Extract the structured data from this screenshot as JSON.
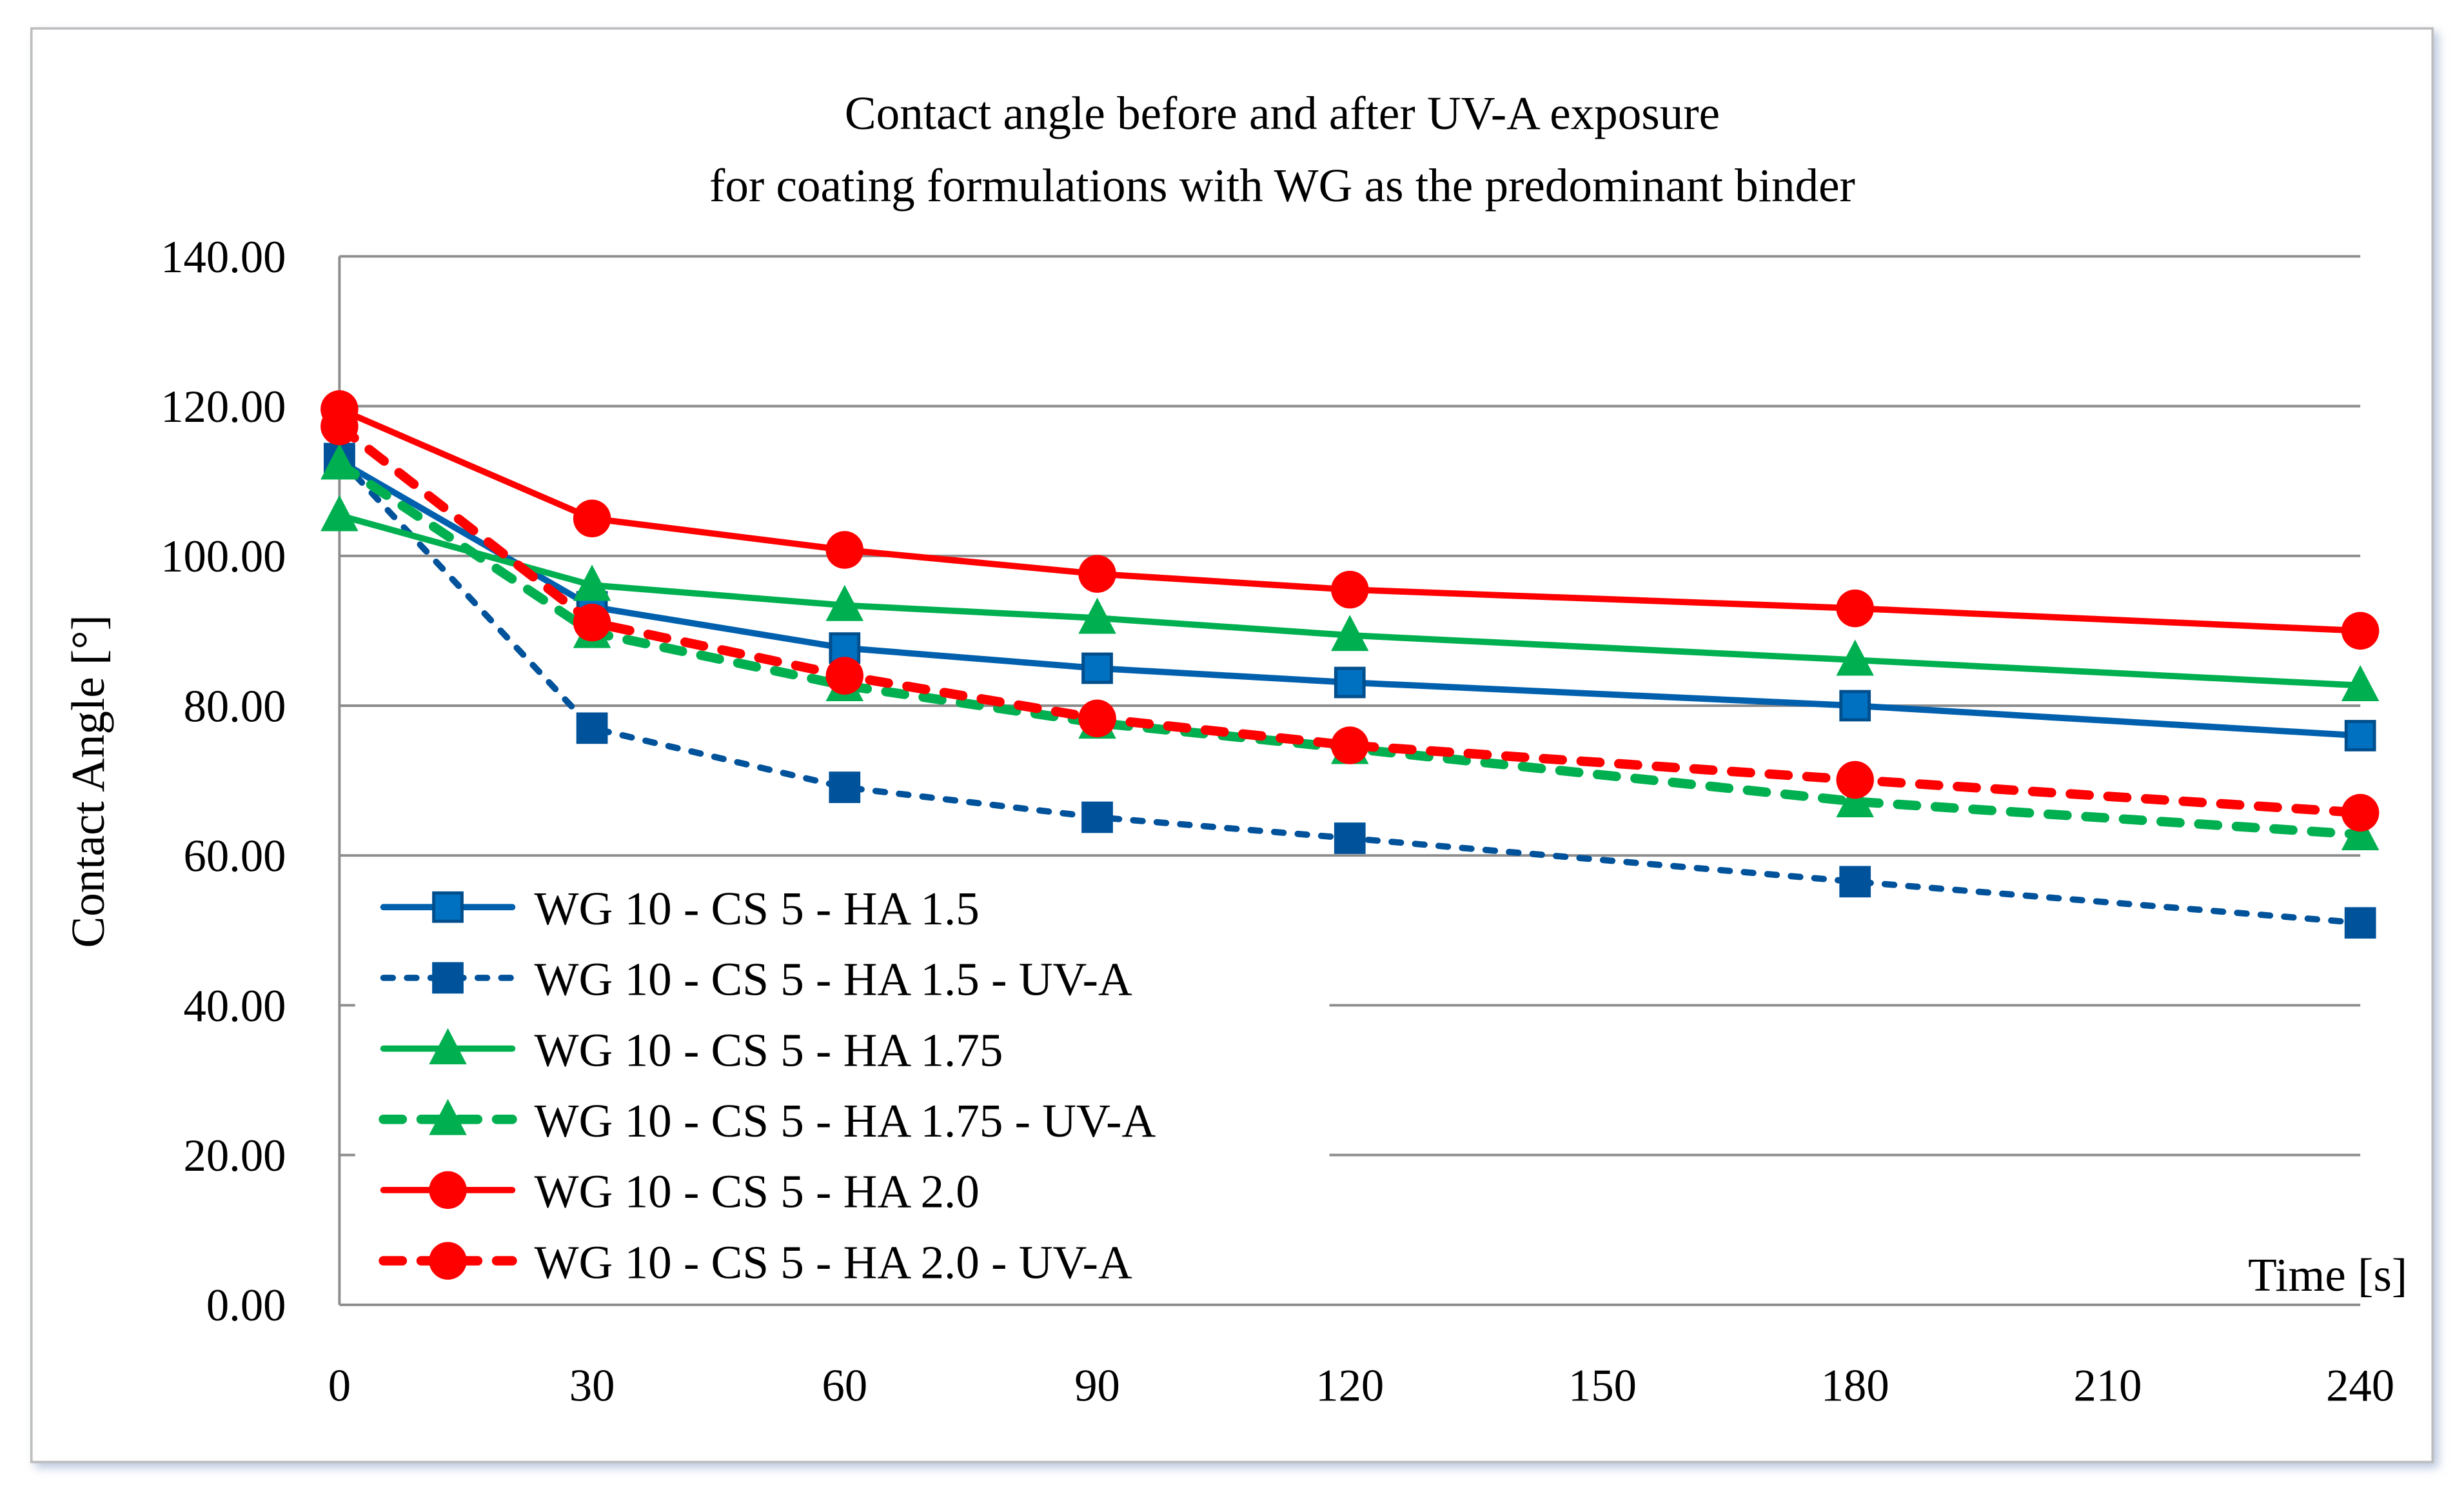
{
  "chart_data": {
    "type": "line",
    "title": [
      "Contact angle before and after UV-A exposure",
      "for coating formulations with WG as the predominant binder"
    ],
    "xlabel": "Time [s]",
    "ylabel": "Contact Angle [°]",
    "xlim": [
      0,
      240
    ],
    "ylim": [
      0,
      140
    ],
    "xticks": [
      0,
      30,
      60,
      90,
      120,
      150,
      180,
      210,
      240
    ],
    "xtick_labels": [
      "0",
      "30",
      "60",
      "90",
      "120",
      "150",
      "180",
      "210",
      "240"
    ],
    "yticks": [
      0,
      20,
      40,
      60,
      80,
      100,
      120,
      140
    ],
    "ytick_labels": [
      "0.00",
      "20.00",
      "40.00",
      "60.00",
      "80.00",
      "100.00",
      "120.00",
      "140.00"
    ],
    "grid": "horizontal",
    "legend_position": "bottom-left",
    "x": [
      0,
      30,
      60,
      90,
      120,
      180,
      240
    ],
    "series": [
      {
        "name": "WG 10 - CS 5 - HA 1.5",
        "color": "#0060AE",
        "fill": "#0070C0",
        "marker": "square",
        "dash": false,
        "values": [
          112.7,
          93.2,
          87.7,
          85.0,
          83.1,
          80.0,
          76.0
        ]
      },
      {
        "name": "WG 10 - CS 5 - HA 1.5 - UV-A",
        "color": "#00529B",
        "fill": "#00529B",
        "marker": "square",
        "dash": true,
        "values": [
          113.0,
          77.0,
          69.1,
          65.1,
          62.3,
          56.5,
          51.0
        ]
      },
      {
        "name": "WG 10 - CS 5 - HA 1.75",
        "color": "#00B050",
        "fill": "#00B050",
        "marker": "triangle",
        "dash": false,
        "values": [
          105.4,
          96.1,
          93.4,
          91.7,
          89.4,
          86.1,
          82.7
        ]
      },
      {
        "name": "WG 10 - CS 5 - HA 1.75 - UV-A",
        "color": "#00B050",
        "fill": "#00B050",
        "marker": "triangle",
        "dash": true,
        "values": [
          112.3,
          89.8,
          82.7,
          77.7,
          74.3,
          67.2,
          62.8
        ]
      },
      {
        "name": "WG 10 - CS 5 - HA 2.0",
        "color": "#FF0000",
        "fill": "#FF0000",
        "marker": "circle",
        "dash": false,
        "values": [
          119.6,
          105.0,
          100.8,
          97.6,
          95.5,
          93.0,
          90.0
        ]
      },
      {
        "name": "WG 10 - CS 5 - HA 2.0 - UV-A",
        "color": "#FF0000",
        "fill": "#FF0000",
        "marker": "circle",
        "dash": true,
        "values": [
          117.3,
          91.1,
          84.0,
          78.3,
          74.7,
          70.1,
          65.7
        ]
      }
    ]
  }
}
